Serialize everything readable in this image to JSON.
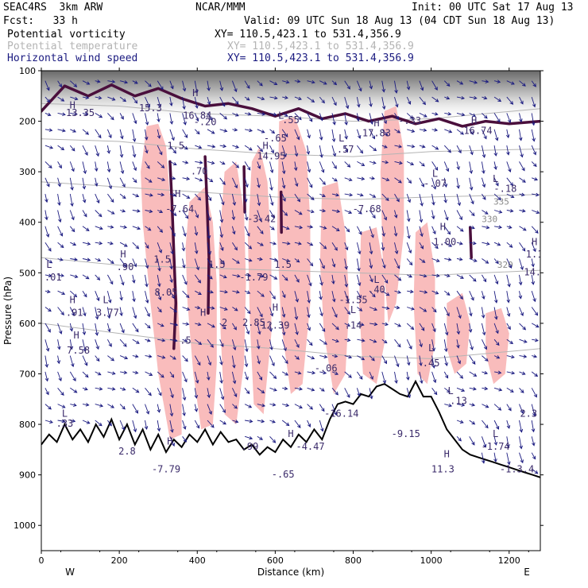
{
  "header": {
    "model": "SEAC4RS  3km ARW",
    "org": "NCAR/MMM",
    "init": "Init: 00 UTC Sat 17 Aug 13",
    "fcst": "Fcst:   33 h",
    "valid": "Valid: 09 UTC Sun 18 Aug 13 (04 CDT Sun 18 Aug 13)",
    "fields": [
      {
        "name": "Potential vorticity",
        "xy": "XY= 110.5,423.1 to 531.4,356.9",
        "color": "#000000"
      },
      {
        "name": "Potential temperature",
        "xy": "XY= 110.5,423.1 to 531.4,356.9",
        "color": "#b4b4b4"
      },
      {
        "name": "Horizontal wind speed",
        "xy": "XY= 110.5,423.1 to 531.4,356.9",
        "color": "#1a1a80"
      }
    ]
  },
  "colors": {
    "pv_fill": "#f9bcbc",
    "pv_contour": "#4a0f3c",
    "theta": "#b4b4b4",
    "wind": "#1a1a80",
    "terrain": "#000000",
    "label": "#3a2a6a"
  },
  "chart_data": {
    "type": "cross-section",
    "xlabel": "Distance (km)",
    "ylabel": "Pressure (hPa)",
    "xlim": [
      0,
      1280
    ],
    "ylim": [
      1050,
      100
    ],
    "x_ticks": [
      "0",
      "200",
      "400",
      "600",
      "800",
      "1000",
      "1200"
    ],
    "y_ticks": [
      "100",
      "200",
      "300",
      "400",
      "500",
      "600",
      "700",
      "800",
      "900",
      "1000"
    ],
    "x_end_labels": {
      "left": "W",
      "right": "E"
    },
    "theta_contour_labels": [
      {
        "text": "335",
        "x": 1180,
        "p": 365
      },
      {
        "text": "330",
        "x": 1150,
        "p": 400
      },
      {
        "text": "320",
        "x": 1190,
        "p": 490
      }
    ],
    "terrain": [
      [
        0,
        840
      ],
      [
        20,
        820
      ],
      [
        40,
        835
      ],
      [
        60,
        800
      ],
      [
        80,
        830
      ],
      [
        100,
        810
      ],
      [
        120,
        835
      ],
      [
        140,
        800
      ],
      [
        160,
        825
      ],
      [
        180,
        790
      ],
      [
        200,
        830
      ],
      [
        220,
        800
      ],
      [
        240,
        840
      ],
      [
        260,
        810
      ],
      [
        280,
        850
      ],
      [
        300,
        820
      ],
      [
        320,
        855
      ],
      [
        340,
        830
      ],
      [
        360,
        845
      ],
      [
        380,
        820
      ],
      [
        400,
        835
      ],
      [
        420,
        810
      ],
      [
        440,
        840
      ],
      [
        460,
        815
      ],
      [
        480,
        835
      ],
      [
        500,
        830
      ],
      [
        520,
        850
      ],
      [
        540,
        840
      ],
      [
        560,
        860
      ],
      [
        580,
        845
      ],
      [
        600,
        855
      ],
      [
        620,
        830
      ],
      [
        640,
        845
      ],
      [
        660,
        820
      ],
      [
        680,
        835
      ],
      [
        700,
        810
      ],
      [
        720,
        830
      ],
      [
        740,
        790
      ],
      [
        760,
        760
      ],
      [
        780,
        755
      ],
      [
        800,
        760
      ],
      [
        820,
        740
      ],
      [
        840,
        745
      ],
      [
        860,
        725
      ],
      [
        880,
        720
      ],
      [
        900,
        730
      ],
      [
        920,
        740
      ],
      [
        940,
        745
      ],
      [
        960,
        715
      ],
      [
        980,
        745
      ],
      [
        1000,
        745
      ],
      [
        1020,
        775
      ],
      [
        1040,
        810
      ],
      [
        1060,
        830
      ],
      [
        1080,
        850
      ],
      [
        1100,
        860
      ],
      [
        1120,
        865
      ],
      [
        1140,
        870
      ],
      [
        1160,
        875
      ],
      [
        1180,
        880
      ],
      [
        1200,
        885
      ],
      [
        1220,
        890
      ],
      [
        1240,
        895
      ],
      [
        1260,
        900
      ],
      [
        1280,
        905
      ]
    ],
    "theta_lines": [
      [
        [
          0,
          165
        ],
        [
          200,
          170
        ],
        [
          400,
          185
        ],
        [
          600,
          190
        ],
        [
          800,
          200
        ],
        [
          1000,
          195
        ],
        [
          1280,
          175
        ]
      ],
      [
        [
          0,
          235
        ],
        [
          200,
          240
        ],
        [
          400,
          255
        ],
        [
          600,
          265
        ],
        [
          800,
          270
        ],
        [
          1000,
          260
        ],
        [
          1280,
          255
        ]
      ],
      [
        [
          0,
          320
        ],
        [
          200,
          330
        ],
        [
          400,
          340
        ],
        [
          600,
          350
        ],
        [
          800,
          355
        ],
        [
          1000,
          350
        ],
        [
          1280,
          345
        ]
      ],
      [
        [
          0,
          470
        ],
        [
          200,
          485
        ],
        [
          400,
          490
        ],
        [
          600,
          495
        ],
        [
          800,
          500
        ],
        [
          1000,
          505
        ],
        [
          1280,
          495
        ]
      ],
      [
        [
          0,
          600
        ],
        [
          200,
          620
        ],
        [
          400,
          640
        ],
        [
          600,
          650
        ],
        [
          800,
          665
        ],
        [
          1000,
          670
        ],
        [
          1280,
          650
        ]
      ]
    ],
    "pv_fill_regions": [
      [
        [
          270,
          210
        ],
        [
          300,
          205
        ],
        [
          320,
          250
        ],
        [
          330,
          350
        ],
        [
          340,
          450
        ],
        [
          350,
          560
        ],
        [
          360,
          700
        ],
        [
          360,
          820
        ],
        [
          330,
          830
        ],
        [
          300,
          700
        ],
        [
          280,
          560
        ],
        [
          260,
          400
        ],
        [
          255,
          300
        ]
      ],
      [
        [
          380,
          360
        ],
        [
          420,
          330
        ],
        [
          440,
          400
        ],
        [
          450,
          520
        ],
        [
          450,
          680
        ],
        [
          440,
          800
        ],
        [
          410,
          810
        ],
        [
          390,
          700
        ],
        [
          375,
          560
        ],
        [
          370,
          450
        ]
      ],
      [
        [
          470,
          300
        ],
        [
          500,
          280
        ],
        [
          520,
          380
        ],
        [
          525,
          520
        ],
        [
          520,
          680
        ],
        [
          500,
          800
        ],
        [
          470,
          780
        ],
        [
          460,
          620
        ],
        [
          455,
          460
        ]
      ],
      [
        [
          540,
          280
        ],
        [
          560,
          250
        ],
        [
          580,
          320
        ],
        [
          590,
          460
        ],
        [
          590,
          620
        ],
        [
          570,
          780
        ],
        [
          545,
          760
        ],
        [
          535,
          600
        ],
        [
          530,
          430
        ]
      ],
      [
        [
          610,
          200
        ],
        [
          650,
          190
        ],
        [
          680,
          260
        ],
        [
          690,
          400
        ],
        [
          690,
          560
        ],
        [
          670,
          720
        ],
        [
          640,
          740
        ],
        [
          615,
          600
        ],
        [
          605,
          420
        ]
      ],
      [
        [
          720,
          330
        ],
        [
          760,
          320
        ],
        [
          780,
          420
        ],
        [
          790,
          560
        ],
        [
          780,
          700
        ],
        [
          750,
          740
        ],
        [
          725,
          620
        ],
        [
          715,
          480
        ]
      ],
      [
        [
          820,
          420
        ],
        [
          860,
          410
        ],
        [
          880,
          500
        ],
        [
          880,
          640
        ],
        [
          860,
          720
        ],
        [
          825,
          700
        ],
        [
          815,
          560
        ]
      ],
      [
        [
          880,
          180
        ],
        [
          910,
          170
        ],
        [
          930,
          260
        ],
        [
          930,
          420
        ],
        [
          910,
          560
        ],
        [
          890,
          600
        ],
        [
          875,
          460
        ],
        [
          870,
          300
        ]
      ],
      [
        [
          960,
          420
        ],
        [
          990,
          400
        ],
        [
          1010,
          500
        ],
        [
          1010,
          640
        ],
        [
          990,
          720
        ],
        [
          965,
          700
        ],
        [
          955,
          560
        ]
      ],
      [
        [
          1040,
          560
        ],
        [
          1080,
          540
        ],
        [
          1100,
          600
        ],
        [
          1090,
          680
        ],
        [
          1060,
          700
        ],
        [
          1040,
          650
        ]
      ],
      [
        [
          1140,
          580
        ],
        [
          1180,
          570
        ],
        [
          1200,
          620
        ],
        [
          1190,
          700
        ],
        [
          1160,
          720
        ],
        [
          1140,
          660
        ]
      ]
    ],
    "pv_contour_paths": [
      [
        [
          0,
          180
        ],
        [
          60,
          130
        ],
        [
          120,
          150
        ],
        [
          180,
          128
        ],
        [
          240,
          150
        ],
        [
          300,
          135
        ],
        [
          360,
          155
        ],
        [
          420,
          170
        ],
        [
          480,
          165
        ],
        [
          540,
          175
        ],
        [
          600,
          190
        ],
        [
          660,
          175
        ],
        [
          720,
          195
        ],
        [
          780,
          185
        ],
        [
          840,
          200
        ],
        [
          900,
          190
        ],
        [
          960,
          205
        ],
        [
          1020,
          195
        ],
        [
          1080,
          210
        ],
        [
          1140,
          200
        ],
        [
          1200,
          205
        ],
        [
          1280,
          200
        ]
      ],
      [
        [
          330,
          280
        ],
        [
          335,
          360
        ],
        [
          340,
          460
        ],
        [
          345,
          560
        ],
        [
          340,
          650
        ]
      ],
      [
        [
          420,
          270
        ],
        [
          425,
          360
        ],
        [
          430,
          470
        ],
        [
          428,
          580
        ]
      ],
      [
        [
          520,
          290
        ],
        [
          522,
          380
        ]
      ],
      [
        [
          615,
          340
        ],
        [
          616,
          420
        ]
      ],
      [
        [
          1100,
          410
        ],
        [
          1103,
          470
        ]
      ]
    ],
    "wind_grid": {
      "dx_km": 32,
      "dp_hPa": 32,
      "p_top": 120,
      "x_start": 10
    },
    "text_labels": [
      {
        "text": "H",
        "x": 80,
        "p": 175
      },
      {
        "text": "13.35",
        "x": 100,
        "p": 190
      },
      {
        "text": "15.3",
        "x": 280,
        "p": 180
      },
      {
        "text": "H",
        "x": 395,
        "p": 150
      },
      {
        "text": "16.84",
        "x": 400,
        "p": 195
      },
      {
        "text": "-.20",
        "x": 420,
        "p": 208
      },
      {
        "text": "L",
        "x": 615,
        "p": 195
      },
      {
        "text": ".55",
        "x": 640,
        "p": 204
      },
      {
        "text": "-.65",
        "x": 600,
        "p": 240
      },
      {
        "text": "H",
        "x": 575,
        "p": 255
      },
      {
        "text": "14.95",
        "x": 590,
        "p": 275
      },
      {
        "text": "H",
        "x": 860,
        "p": 210
      },
      {
        "text": "17.83",
        "x": 860,
        "p": 230
      },
      {
        "text": "-.33",
        "x": 945,
        "p": 205
      },
      {
        "text": "H",
        "x": 1110,
        "p": 205
      },
      {
        "text": "16.74",
        "x": 1120,
        "p": 225
      },
      {
        "text": "L",
        "x": 770,
        "p": 240
      },
      {
        "text": ".57",
        "x": 780,
        "p": 262
      },
      {
        "text": "1.5",
        "x": 345,
        "p": 255
      },
      {
        "text": ".70",
        "x": 405,
        "p": 305
      },
      {
        "text": "H",
        "x": 350,
        "p": 350
      },
      {
        "text": "-7.64",
        "x": 355,
        "p": 380
      },
      {
        "text": "-3.42",
        "x": 565,
        "p": 400
      },
      {
        "text": "-7.68",
        "x": 835,
        "p": 380
      },
      {
        "text": "L",
        "x": 1010,
        "p": 310
      },
      {
        "text": "-.07",
        "x": 1010,
        "p": 330
      },
      {
        "text": "L",
        "x": 1165,
        "p": 320
      },
      {
        "text": "-.18",
        "x": 1190,
        "p": 340
      },
      {
        "text": "H",
        "x": 1030,
        "p": 415
      },
      {
        "text": "1.00",
        "x": 1035,
        "p": 445
      },
      {
        "text": "H",
        "x": 1265,
        "p": 445
      },
      {
        "text": "1.1",
        "x": 1265,
        "p": 470
      },
      {
        "text": "14.",
        "x": 1260,
        "p": 505
      },
      {
        "text": "H",
        "x": 210,
        "p": 470
      },
      {
        "text": ".90",
        "x": 215,
        "p": 495
      },
      {
        "text": "L",
        "x": 20,
        "p": 490
      },
      {
        "text": ".01",
        "x": 30,
        "p": 515
      },
      {
        "text": "1.5",
        "x": 310,
        "p": 480
      },
      {
        "text": "1.5",
        "x": 450,
        "p": 490
      },
      {
        "text": "1.5",
        "x": 620,
        "p": 490
      },
      {
        "text": "-1.79",
        "x": 545,
        "p": 515
      },
      {
        "text": "8.05",
        "x": 320,
        "p": 545
      },
      {
        "text": "H",
        "x": 80,
        "p": 560
      },
      {
        "text": ".91",
        "x": 85,
        "p": 585
      },
      {
        "text": "L",
        "x": 165,
        "p": 560
      },
      {
        "text": "3.77",
        "x": 170,
        "p": 585
      },
      {
        "text": "L",
        "x": 860,
        "p": 520
      },
      {
        "text": ".40",
        "x": 860,
        "p": 540
      },
      {
        "text": "-1.55",
        "x": 800,
        "p": 560
      },
      {
        "text": "L",
        "x": 800,
        "p": 580
      },
      {
        "text": ".14",
        "x": 800,
        "p": 610
      },
      {
        "text": "H",
        "x": 415,
        "p": 585
      },
      {
        "text": "2",
        "x": 470,
        "p": 605
      },
      {
        "text": "H",
        "x": 600,
        "p": 575
      },
      {
        "text": "2.85",
        "x": 545,
        "p": 605
      },
      {
        "text": "12.39",
        "x": 600,
        "p": 610
      },
      {
        "text": "H",
        "x": 90,
        "p": 630
      },
      {
        "text": "7.58",
        "x": 95,
        "p": 660
      },
      {
        "text": ".5",
        "x": 370,
        "p": 640
      },
      {
        "text": "-.06",
        "x": 730,
        "p": 695
      },
      {
        "text": "L",
        "x": 1000,
        "p": 655
      },
      {
        "text": ".45",
        "x": 1000,
        "p": 685
      },
      {
        "text": "L",
        "x": 1050,
        "p": 740
      },
      {
        "text": ".13",
        "x": 1070,
        "p": 760
      },
      {
        "text": "L",
        "x": 60,
        "p": 785
      },
      {
        "text": ".33",
        "x": 60,
        "p": 805
      },
      {
        "text": "-16.14",
        "x": 770,
        "p": 785
      },
      {
        "text": "-9.15",
        "x": 935,
        "p": 825
      },
      {
        "text": "2.3",
        "x": 1250,
        "p": 785
      },
      {
        "text": "L",
        "x": 1165,
        "p": 825
      },
      {
        "text": "-1.74",
        "x": 1165,
        "p": 850
      },
      {
        "text": "H",
        "x": 1040,
        "p": 865
      },
      {
        "text": "11.3",
        "x": 1030,
        "p": 895
      },
      {
        "text": "-1.3.4",
        "x": 1220,
        "p": 895
      },
      {
        "text": "H",
        "x": 640,
        "p": 825
      },
      {
        "text": ".99",
        "x": 535,
        "p": 850
      },
      {
        "text": "-4.47",
        "x": 690,
        "p": 850
      },
      {
        "text": "2.8",
        "x": 220,
        "p": 860
      },
      {
        "text": "H",
        "x": 330,
        "p": 840
      },
      {
        "text": "-7.79",
        "x": 320,
        "p": 895
      },
      {
        "text": "-.65",
        "x": 620,
        "p": 905
      }
    ]
  }
}
